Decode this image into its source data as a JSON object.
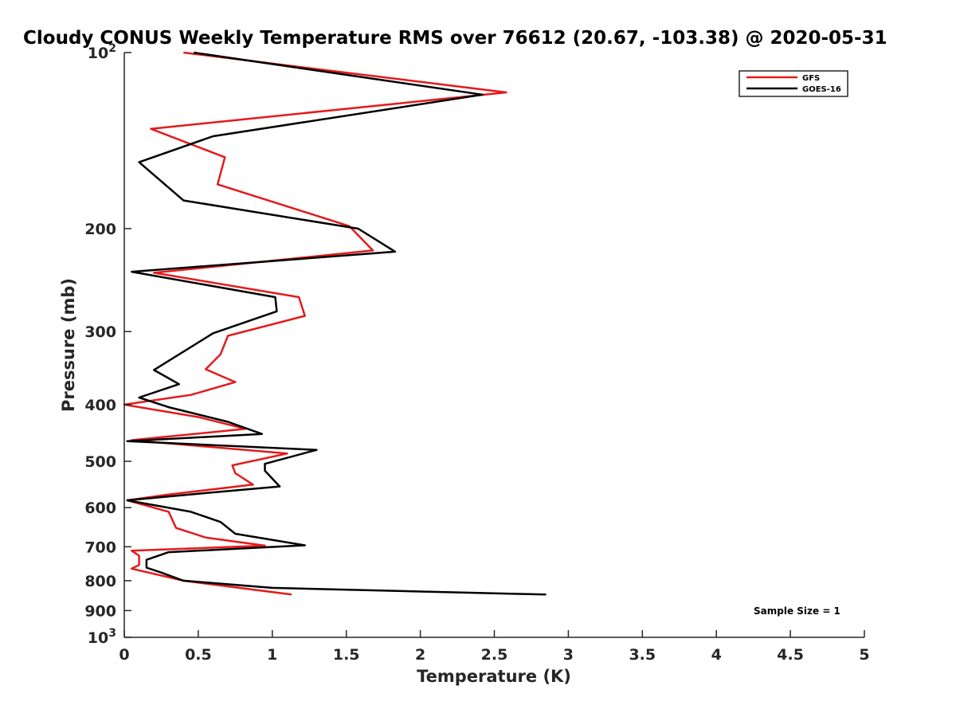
{
  "chart_data": {
    "type": "line",
    "title": "Cloudy CONUS Weekly Temperature RMS over 76612 (20.67, -103.38) @ 2020-05-31",
    "xlabel": "Temperature (K)",
    "ylabel": "Pressure (mb)",
    "xlim": [
      0,
      5
    ],
    "ylim": [
      100,
      1000
    ],
    "y_scale": "log",
    "y_reversed": true,
    "grid": false,
    "legend_position": "top-right",
    "x_ticks": [
      "0",
      "0.5",
      "1",
      "1.5",
      "2",
      "2.5",
      "3",
      "3.5",
      "4",
      "4.5",
      "5"
    ],
    "y_ticks": [
      {
        "value": 200,
        "label": "200"
      },
      {
        "value": 300,
        "label": "300"
      },
      {
        "value": 400,
        "label": "400"
      },
      {
        "value": 500,
        "label": "500"
      },
      {
        "value": 600,
        "label": "600"
      },
      {
        "value": 700,
        "label": "700"
      },
      {
        "value": 800,
        "label": "800"
      },
      {
        "value": 900,
        "label": "900"
      }
    ],
    "y_tick_pow": [
      {
        "value": 100,
        "base": "10",
        "exp": "2"
      },
      {
        "value": 1000,
        "base": "10",
        "exp": "3"
      }
    ],
    "series": [
      {
        "name": "GFS",
        "color": "#e41a1c",
        "points": [
          [
            0.4,
            100
          ],
          [
            2.58,
            117
          ],
          [
            0.18,
            135
          ],
          [
            0.68,
            151
          ],
          [
            0.63,
            168
          ],
          [
            1.52,
            198
          ],
          [
            1.68,
            218
          ],
          [
            0.2,
            238
          ],
          [
            1.18,
            262
          ],
          [
            1.22,
            282
          ],
          [
            0.7,
            305
          ],
          [
            0.65,
            328
          ],
          [
            0.55,
            348
          ],
          [
            0.75,
            366
          ],
          [
            0.45,
            385
          ],
          [
            0.0,
            400
          ],
          [
            0.5,
            420
          ],
          [
            0.82,
            440
          ],
          [
            0.05,
            460
          ],
          [
            1.1,
            485
          ],
          [
            0.73,
            508
          ],
          [
            0.75,
            524
          ],
          [
            0.87,
            548
          ],
          [
            0.3,
            570
          ],
          [
            0.02,
            583
          ],
          [
            0.3,
            610
          ],
          [
            0.35,
            650
          ],
          [
            0.55,
            675
          ],
          [
            0.95,
            697
          ],
          [
            0.05,
            711
          ],
          [
            0.1,
            725
          ],
          [
            0.1,
            752
          ],
          [
            0.05,
            763
          ],
          [
            0.4,
            800
          ],
          [
            1.13,
            845
          ]
        ]
      },
      {
        "name": "GOES-16",
        "color": "#000000",
        "points": [
          [
            0.47,
            100
          ],
          [
            2.42,
            118
          ],
          [
            0.6,
            139
          ],
          [
            0.1,
            154
          ],
          [
            0.4,
            179
          ],
          [
            1.58,
            200
          ],
          [
            1.83,
            219
          ],
          [
            0.05,
            237
          ],
          [
            1.02,
            262
          ],
          [
            1.03,
            277
          ],
          [
            0.6,
            302
          ],
          [
            0.2,
            349
          ],
          [
            0.37,
            369
          ],
          [
            0.1,
            389
          ],
          [
            0.3,
            404
          ],
          [
            0.7,
            428
          ],
          [
            0.93,
            449
          ],
          [
            0.02,
            462
          ],
          [
            1.3,
            478
          ],
          [
            0.95,
            505
          ],
          [
            0.95,
            519
          ],
          [
            1.05,
            552
          ],
          [
            0.5,
            568
          ],
          [
            0.02,
            583
          ],
          [
            0.45,
            610
          ],
          [
            0.65,
            635
          ],
          [
            0.75,
            665
          ],
          [
            1.22,
            696
          ],
          [
            0.3,
            715
          ],
          [
            0.15,
            737
          ],
          [
            0.15,
            760
          ],
          [
            0.25,
            775
          ],
          [
            0.4,
            800
          ],
          [
            1.0,
            823
          ],
          [
            2.85,
            845
          ]
        ]
      }
    ],
    "annotation": "Sample Size = 1"
  }
}
